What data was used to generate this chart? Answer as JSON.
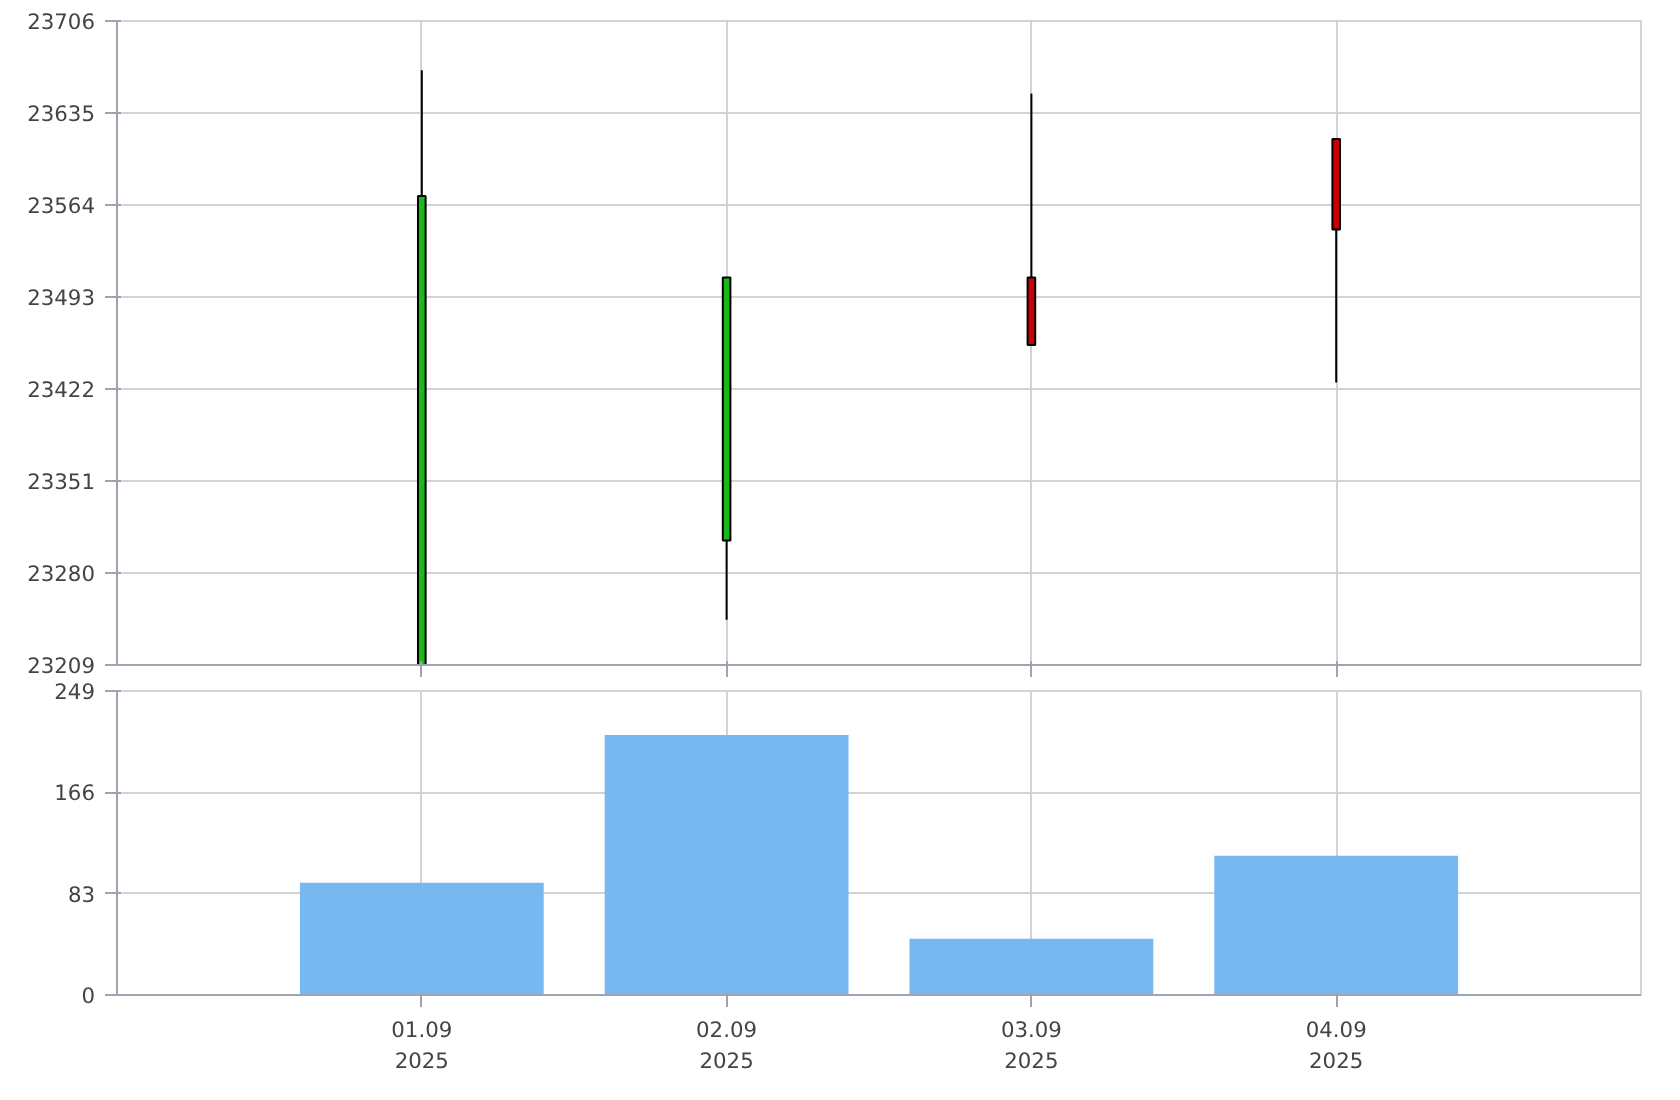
{
  "chart_data": [
    {
      "type": "candlestick",
      "categories": [
        null,
        null,
        null,
        null
      ],
      "ohlc": [
        [
          23209,
          23668,
          23209,
          23571
        ],
        [
          23305,
          23508,
          23244,
          23508
        ],
        [
          23508,
          23650,
          23456,
          23456
        ],
        [
          23615,
          23615,
          23427,
          23545
        ]
      ],
      "colors": [
        "#1ab81a",
        "#1ab81a",
        "#cc0000",
        "#cc0000"
      ],
      "ylim": [
        23209,
        23706
      ],
      "yticks": [
        23209,
        23280,
        23351,
        23422,
        23493,
        23564,
        23635,
        23706
      ],
      "grid": true,
      "tick_labels": "y"
    },
    {
      "type": "bar",
      "categories": [
        "01.09\n2025",
        "02.09\n2025",
        "03.09\n2025",
        "04.09\n2025"
      ],
      "values": [
        92,
        213,
        46,
        114
      ],
      "color": "#78b8f0",
      "ylim": [
        0,
        249
      ],
      "yticks": [
        0,
        83,
        166,
        249
      ],
      "grid": true
    }
  ]
}
